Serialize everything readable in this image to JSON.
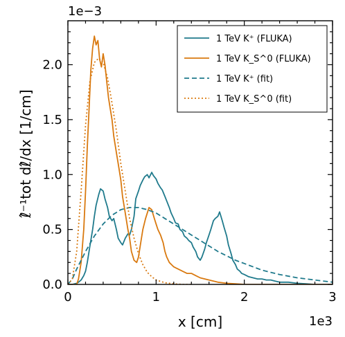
{
  "chart_data": {
    "type": "line",
    "xlabel_text": "x [cm]",
    "ylabel_text": "ℓ̂⁻¹tot dℓ̂/dx [1/cm]",
    "x_scale_label": "1e3",
    "y_scale_label": "1e−3",
    "xlim": [
      0,
      3
    ],
    "ylim": [
      0,
      2.4
    ],
    "x_ticks": [
      0,
      1,
      2,
      3
    ],
    "x_tick_labels": [
      "0",
      "1",
      "2",
      "3"
    ],
    "y_ticks": [
      0,
      0.5,
      1.0,
      1.5,
      2.0
    ],
    "y_tick_labels": [
      "0.0",
      "0.5",
      "1.0",
      "1.5",
      "2.0"
    ],
    "legend_position": "top-right",
    "series": [
      {
        "name": "1 TeV K⁺ (FLUKA)",
        "color": "#1f7a8c",
        "style": "solid",
        "x": [
          0.0,
          0.05,
          0.1,
          0.12,
          0.15,
          0.18,
          0.2,
          0.22,
          0.25,
          0.28,
          0.3,
          0.32,
          0.35,
          0.37,
          0.4,
          0.42,
          0.45,
          0.47,
          0.5,
          0.52,
          0.55,
          0.57,
          0.6,
          0.62,
          0.65,
          0.68,
          0.7,
          0.72,
          0.75,
          0.77,
          0.8,
          0.82,
          0.85,
          0.87,
          0.9,
          0.92,
          0.95,
          0.97,
          1.0,
          1.02,
          1.05,
          1.07,
          1.1,
          1.12,
          1.15,
          1.17,
          1.2,
          1.22,
          1.25,
          1.27,
          1.3,
          1.32,
          1.35,
          1.37,
          1.4,
          1.42,
          1.45,
          1.47,
          1.5,
          1.52,
          1.55,
          1.57,
          1.6,
          1.62,
          1.65,
          1.67,
          1.7,
          1.72,
          1.75,
          1.77,
          1.8,
          1.82,
          1.85,
          1.87,
          1.9,
          1.92,
          1.95,
          1.97,
          2.0,
          2.05,
          2.1,
          2.15,
          2.2,
          2.25,
          2.3,
          2.35,
          2.4,
          2.5,
          2.6,
          2.7,
          2.8,
          3.0
        ],
        "y": [
          0.0,
          0.0,
          0.01,
          0.02,
          0.04,
          0.08,
          0.12,
          0.2,
          0.35,
          0.5,
          0.62,
          0.72,
          0.82,
          0.87,
          0.85,
          0.78,
          0.7,
          0.62,
          0.58,
          0.6,
          0.5,
          0.42,
          0.38,
          0.36,
          0.42,
          0.46,
          0.45,
          0.5,
          0.62,
          0.78,
          0.85,
          0.9,
          0.95,
          0.98,
          1.0,
          0.97,
          1.02,
          0.99,
          0.96,
          0.92,
          0.88,
          0.86,
          0.8,
          0.76,
          0.7,
          0.65,
          0.6,
          0.56,
          0.55,
          0.5,
          0.48,
          0.44,
          0.42,
          0.4,
          0.38,
          0.34,
          0.3,
          0.25,
          0.22,
          0.25,
          0.32,
          0.38,
          0.45,
          0.5,
          0.58,
          0.6,
          0.62,
          0.66,
          0.58,
          0.52,
          0.44,
          0.36,
          0.28,
          0.22,
          0.18,
          0.14,
          0.12,
          0.1,
          0.09,
          0.07,
          0.06,
          0.05,
          0.05,
          0.04,
          0.04,
          0.03,
          0.02,
          0.02,
          0.01,
          0.005,
          0.0,
          0.0
        ]
      },
      {
        "name": "1 TeV K_S^0 (FLUKA)",
        "color": "#d9790f",
        "style": "solid",
        "x": [
          0.0,
          0.1,
          0.12,
          0.15,
          0.18,
          0.2,
          0.22,
          0.24,
          0.26,
          0.28,
          0.3,
          0.32,
          0.34,
          0.36,
          0.38,
          0.4,
          0.42,
          0.44,
          0.46,
          0.48,
          0.5,
          0.52,
          0.55,
          0.58,
          0.6,
          0.62,
          0.65,
          0.68,
          0.7,
          0.72,
          0.75,
          0.78,
          0.8,
          0.82,
          0.85,
          0.88,
          0.9,
          0.92,
          0.95,
          0.98,
          1.0,
          1.02,
          1.05,
          1.08,
          1.1,
          1.12,
          1.15,
          1.2,
          1.25,
          1.3,
          1.35,
          1.4,
          1.45,
          1.5,
          1.6,
          1.7,
          1.8,
          1.9,
          2.0,
          2.1,
          3.0
        ],
        "y": [
          0.0,
          0.0,
          0.05,
          0.2,
          0.5,
          0.85,
          1.25,
          1.6,
          1.95,
          2.15,
          2.26,
          2.18,
          2.22,
          2.05,
          1.98,
          2.1,
          2.0,
          1.85,
          1.7,
          1.6,
          1.5,
          1.35,
          1.2,
          1.05,
          0.95,
          0.8,
          0.65,
          0.5,
          0.42,
          0.3,
          0.22,
          0.2,
          0.25,
          0.35,
          0.5,
          0.6,
          0.65,
          0.7,
          0.68,
          0.6,
          0.55,
          0.5,
          0.45,
          0.38,
          0.3,
          0.25,
          0.2,
          0.16,
          0.14,
          0.12,
          0.1,
          0.1,
          0.08,
          0.06,
          0.04,
          0.02,
          0.01,
          0.005,
          0.0,
          0.0,
          0.0
        ]
      },
      {
        "name": "1 TeV K⁺ (fit)",
        "color": "#1f7a8c",
        "style": "dashed",
        "x": [
          0.0,
          0.05,
          0.1,
          0.2,
          0.3,
          0.4,
          0.5,
          0.6,
          0.7,
          0.8,
          0.9,
          1.0,
          1.1,
          1.2,
          1.3,
          1.4,
          1.5,
          1.6,
          1.7,
          1.8,
          1.9,
          2.0,
          2.2,
          2.4,
          2.6,
          2.8,
          3.0
        ],
        "y": [
          0.0,
          0.05,
          0.14,
          0.3,
          0.44,
          0.55,
          0.63,
          0.68,
          0.7,
          0.7,
          0.68,
          0.65,
          0.6,
          0.55,
          0.5,
          0.45,
          0.4,
          0.35,
          0.3,
          0.26,
          0.22,
          0.19,
          0.13,
          0.09,
          0.06,
          0.04,
          0.02
        ]
      },
      {
        "name": "1 TeV K_S^0 (fit)",
        "color": "#d9790f",
        "style": "dotted",
        "x": [
          0.0,
          0.05,
          0.1,
          0.15,
          0.2,
          0.25,
          0.3,
          0.35,
          0.4,
          0.45,
          0.5,
          0.55,
          0.6,
          0.65,
          0.7,
          0.75,
          0.8,
          0.85,
          0.9,
          0.95,
          1.0,
          1.1,
          1.2,
          1.3,
          1.4
        ],
        "y": [
          0.0,
          0.05,
          0.3,
          0.85,
          1.45,
          1.85,
          2.02,
          2.06,
          2.02,
          1.88,
          1.65,
          1.4,
          1.1,
          0.85,
          0.6,
          0.42,
          0.28,
          0.18,
          0.11,
          0.07,
          0.04,
          0.015,
          0.005,
          0.0,
          0.0
        ]
      }
    ]
  }
}
